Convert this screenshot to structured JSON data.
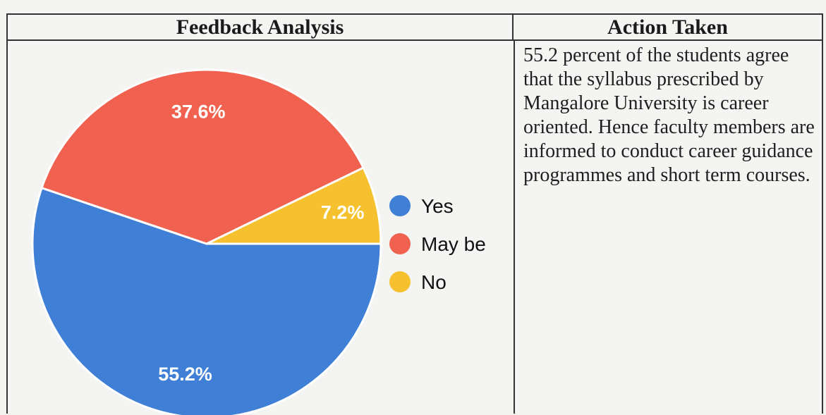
{
  "table": {
    "left_header": "Feedback Analysis",
    "right_header": "Action Taken",
    "action_text": "55.2 percent of the students agree that the syllabus prescribed by Mangalore University is career oriented. Hence faculty members are informed to conduct career guidance programmes and short term courses."
  },
  "chart_data": {
    "type": "pie",
    "slices": [
      {
        "label": "Yes",
        "value": 55.2,
        "display": "55.2%",
        "color": "#3f7fd6"
      },
      {
        "label": "May be",
        "value": 37.6,
        "display": "37.6%",
        "color": "#f0624f"
      },
      {
        "label": "No",
        "value": 7.2,
        "display": "7.2%",
        "color": "#f5c12e"
      }
    ],
    "legend": {
      "position": "right",
      "items": [
        "Yes",
        "May be",
        "No"
      ]
    }
  }
}
